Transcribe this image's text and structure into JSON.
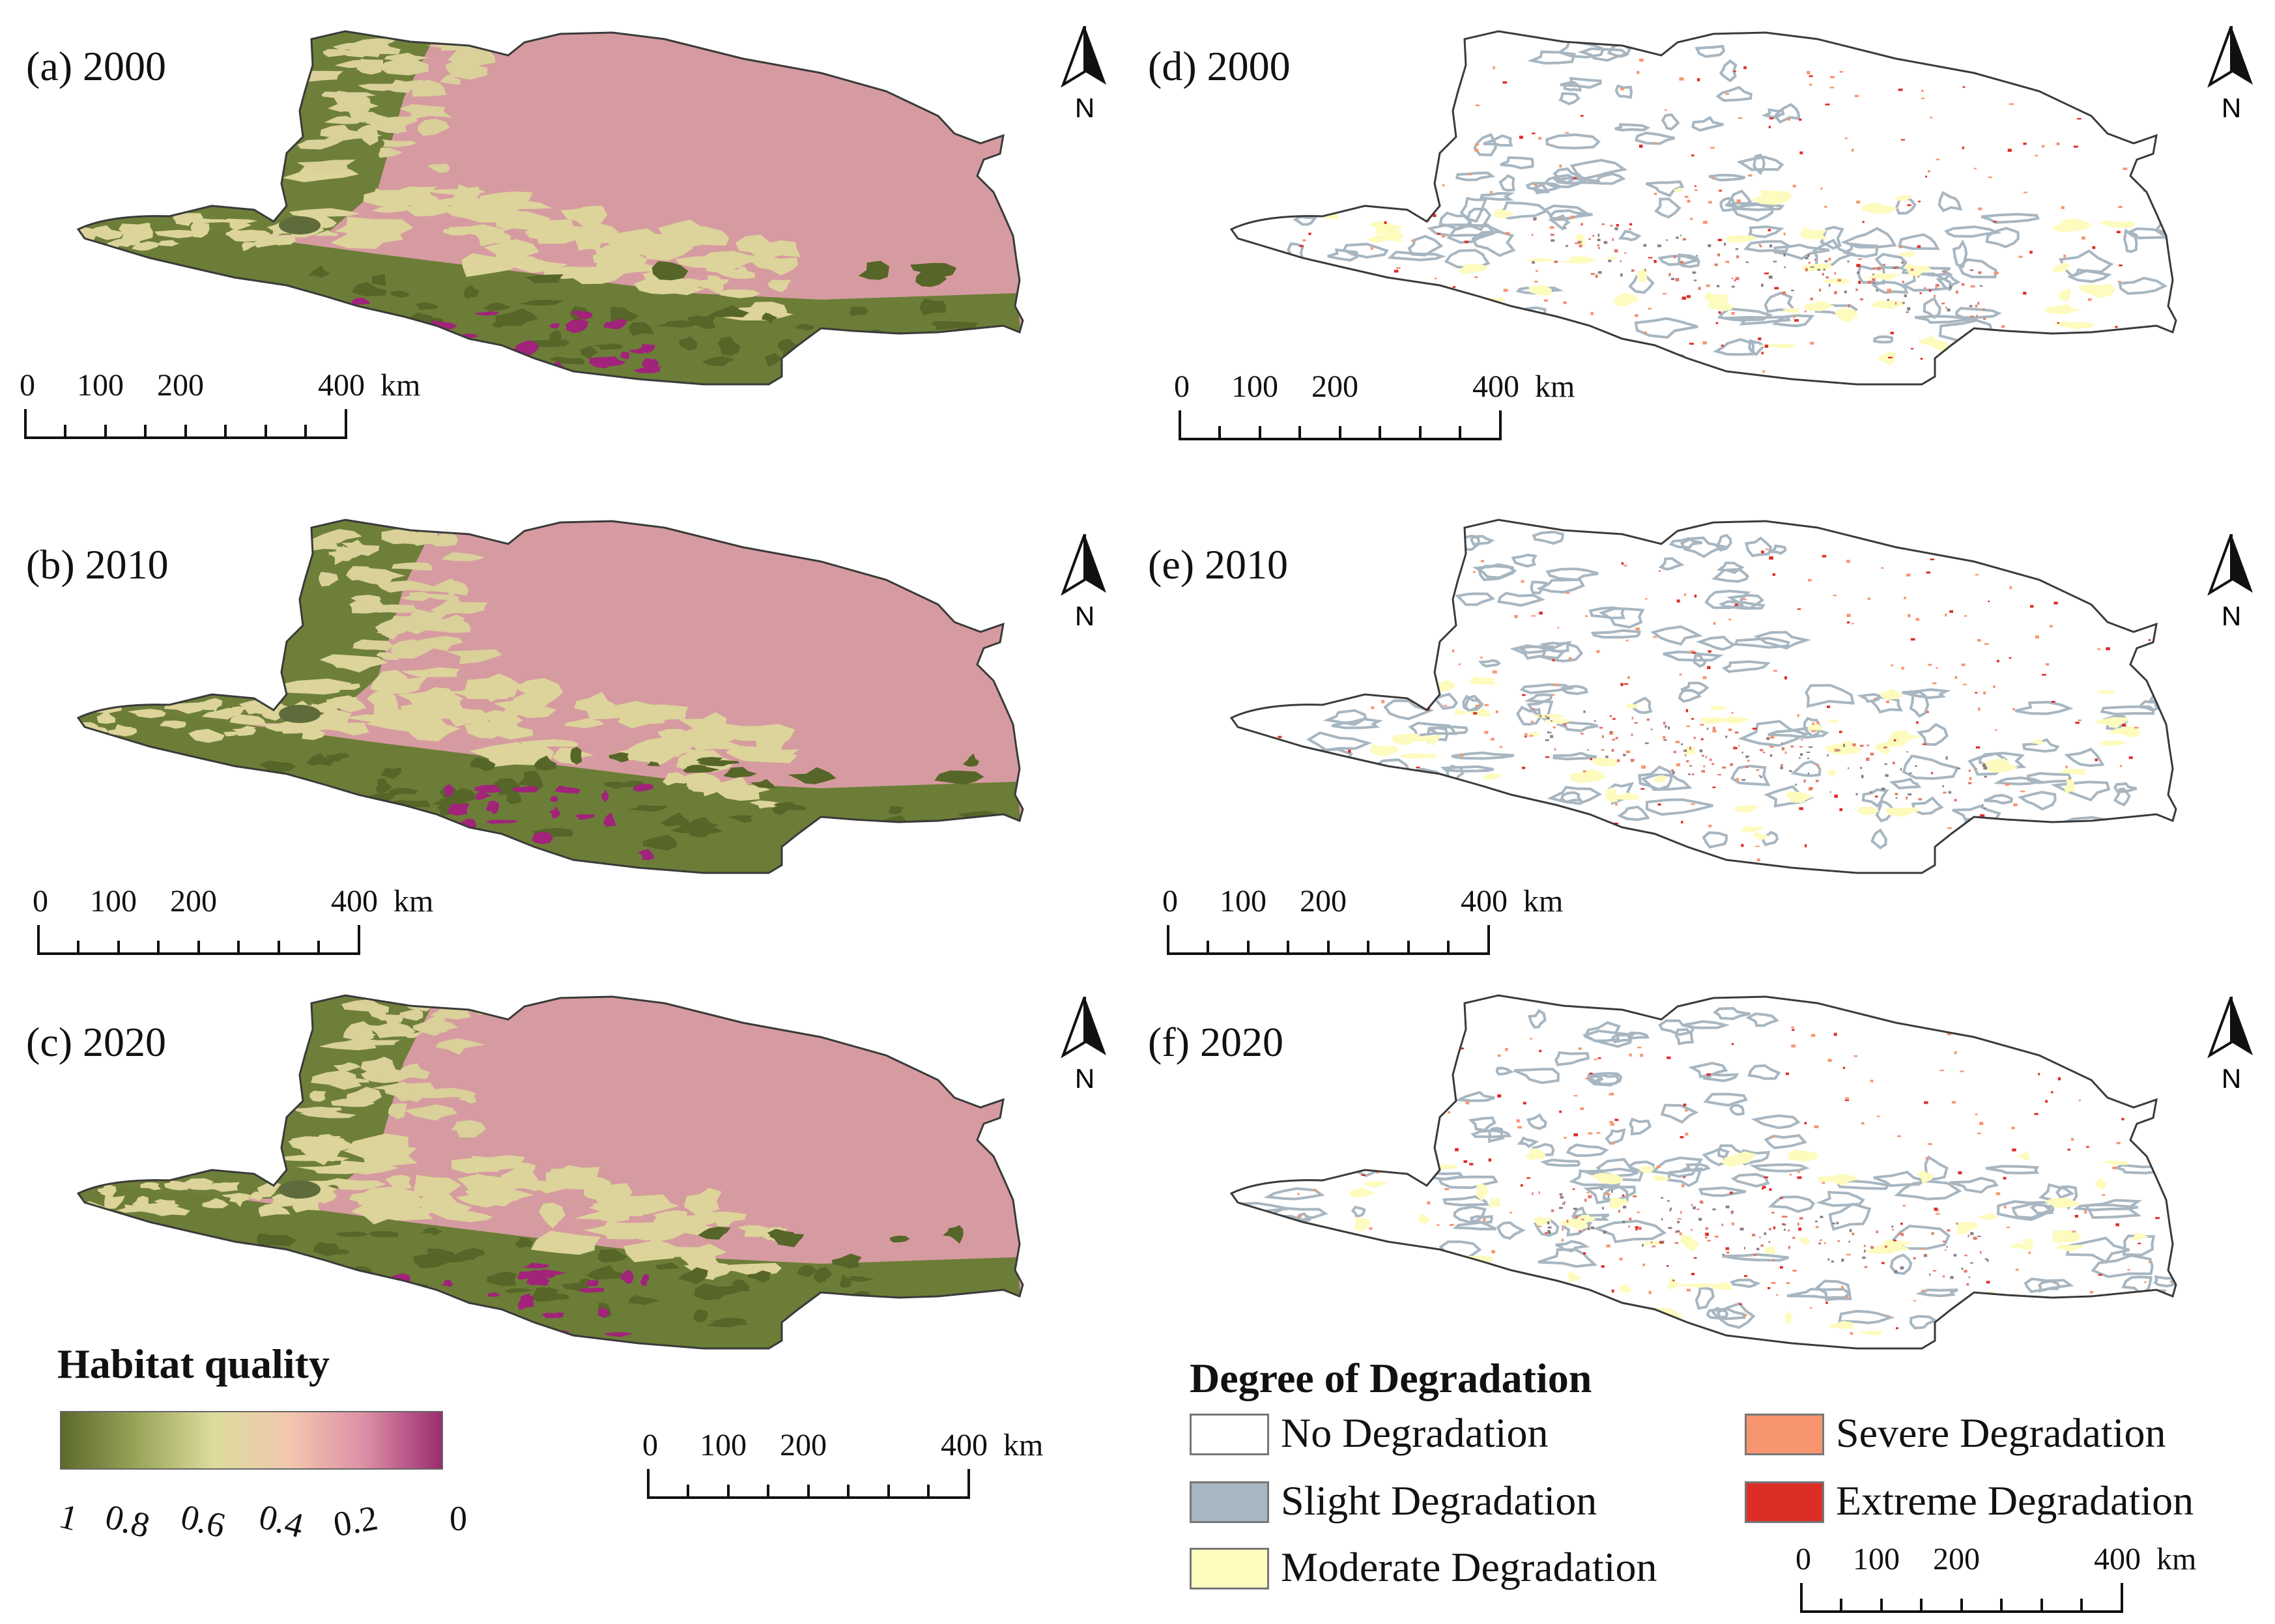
{
  "panels": [
    {
      "id": "a",
      "title": "(a) 2000",
      "type": "habitat"
    },
    {
      "id": "b",
      "title": "(b) 2010",
      "type": "habitat"
    },
    {
      "id": "c",
      "title": "(c) 2020",
      "type": "habitat"
    },
    {
      "id": "d",
      "title": "(d) 2000",
      "type": "degradation"
    },
    {
      "id": "e",
      "title": "(e) 2010",
      "type": "degradation"
    },
    {
      "id": "f",
      "title": "(f) 2020",
      "type": "degradation"
    }
  ],
  "north_arrow_label": "N",
  "scale_bar": {
    "ticks": [
      "0",
      "100",
      "200",
      "400"
    ],
    "unit": "km"
  },
  "habitat_legend": {
    "title": "Habitat quality",
    "labels": [
      "1",
      "0.8",
      "0.6",
      "0.4",
      "0.2",
      "0"
    ],
    "colors": [
      "#5c6a2c",
      "#9aa55a",
      "#dcdc9c",
      "#f2c7ae",
      "#dc8ea6",
      "#9c2c6f"
    ]
  },
  "degradation_legend": {
    "title": "Degree of Degradation",
    "items": [
      {
        "label": "No Degradation",
        "color": "#ffffff"
      },
      {
        "label": "Slight Degradation",
        "color": "#a7b6c1"
      },
      {
        "label": "Moderate Degradation",
        "color": "#fdfbbe"
      },
      {
        "label": "Severe Degradation",
        "color": "#f7956e"
      },
      {
        "label": "Extreme Degradation",
        "color": "#dd2e26"
      }
    ]
  },
  "colors": {
    "low_quality_pink": "#d69ba0",
    "high_quality_green": "#6e7f3a",
    "mid_quality_beige": "#dcd49a",
    "very_low_magenta": "#a1237a",
    "outline": "#3a3a3a"
  }
}
